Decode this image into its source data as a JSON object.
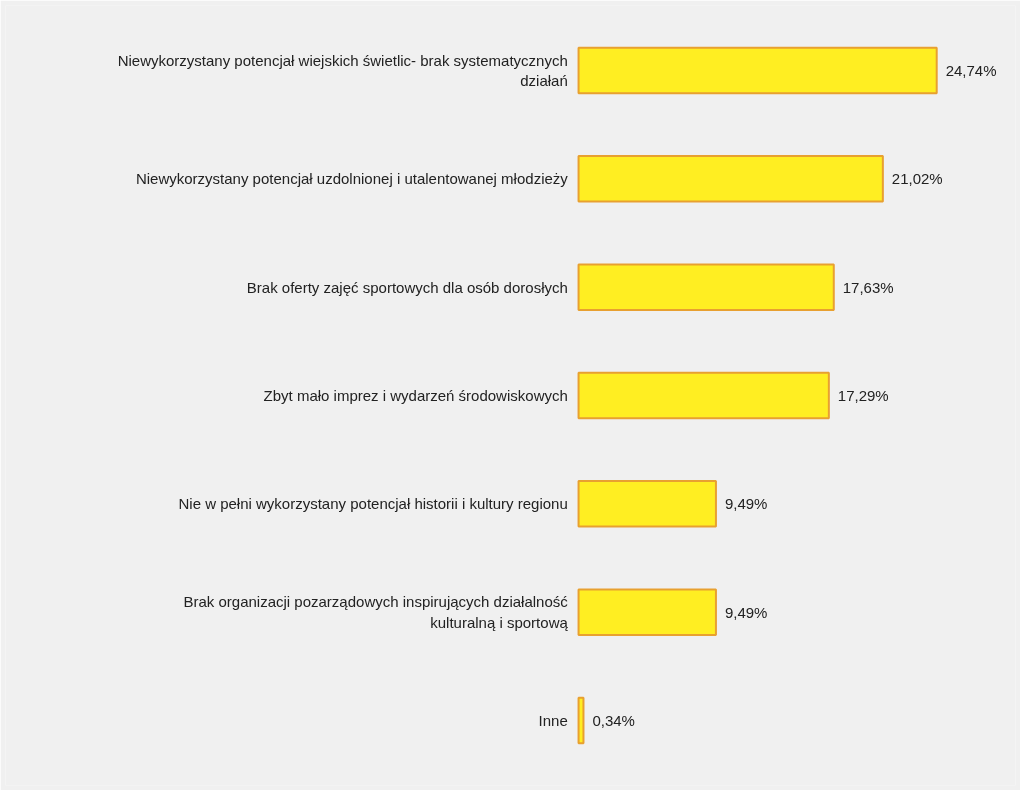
{
  "chart_data": {
    "type": "bar",
    "orientation": "horizontal",
    "categories": [
      "Niewykorzystany potencjał wiejskich świetlic- brak systematycznych działań",
      "Niewykorzystany potencjał uzdolnionej i utalentowanej młodzieży",
      "Brak oferty zajęć sportowych dla osób dorosłych",
      "Zbyt mało imprez i wydarzeń środowiskowych",
      "Nie w pełni wykorzystany potencjał historii i kultury regionu",
      "Brak organizacji pozarządowych inspirujących działalność kulturalną i sportową",
      "Inne"
    ],
    "values": [
      24.74,
      21.02,
      17.63,
      17.29,
      9.49,
      9.49,
      0.34
    ],
    "value_labels": [
      "24,74%",
      "21,02%",
      "17,63%",
      "17,29%",
      "9,49%",
      "9,49%",
      "0,34%"
    ],
    "color": "#ffee22"
  }
}
